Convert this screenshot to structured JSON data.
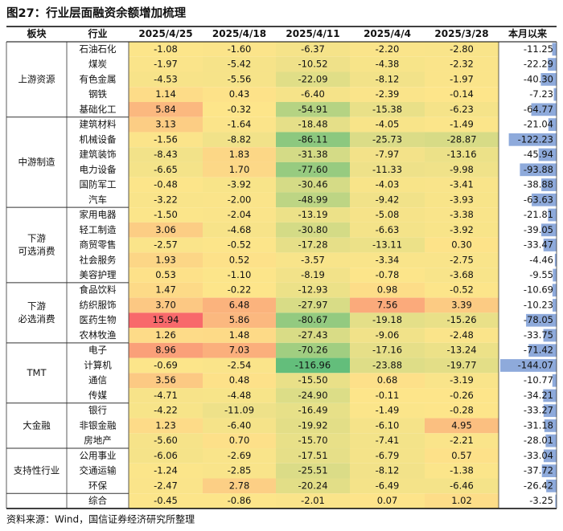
{
  "title": "图27：行业层面融资余额增加梳理",
  "table": {
    "headers": [
      "板块",
      "行业",
      "2025/4/25",
      "2025/4/18",
      "2025/4/11",
      "2025/4/4",
      "2025/3/28",
      "本月以来"
    ],
    "groups": [
      {
        "name": [
          "上游资源"
        ],
        "rows": [
          {
            "industry": "石油石化",
            "values": [
              "-1.08",
              "-1.60",
              "-6.37",
              "-2.20",
              "-2.80"
            ],
            "month": "-11.25"
          },
          {
            "industry": "煤炭",
            "values": [
              "-1.97",
              "-5.42",
              "-10.52",
              "-4.38",
              "-2.32"
            ],
            "month": "-22.29"
          },
          {
            "industry": "有色金属",
            "values": [
              "-4.53",
              "-5.56",
              "-22.09",
              "-8.12",
              "-1.97"
            ],
            "month": "-40.30"
          },
          {
            "industry": "钢铁",
            "values": [
              "1.14",
              "0.43",
              "-6.40",
              "-2.39",
              "-0.14"
            ],
            "month": "-7.23"
          },
          {
            "industry": "基础化工",
            "values": [
              "5.84",
              "-0.32",
              "-54.91",
              "-15.38",
              "-6.23"
            ],
            "month": "-64.77"
          }
        ]
      },
      {
        "name": [
          "中游制造"
        ],
        "rows": [
          {
            "industry": "建筑材料",
            "values": [
              "3.13",
              "-1.64",
              "-18.48",
              "-4.05",
              "-1.49"
            ],
            "month": "-21.04"
          },
          {
            "industry": "机械设备",
            "values": [
              "-1.56",
              "-8.82",
              "-86.11",
              "-25.73",
              "-28.87"
            ],
            "month": "-122.23"
          },
          {
            "industry": "建筑装饰",
            "values": [
              "-8.43",
              "1.83",
              "-31.38",
              "-7.97",
              "-13.16"
            ],
            "month": "-45.94"
          },
          {
            "industry": "电力设备",
            "values": [
              "-6.65",
              "1.70",
              "-77.60",
              "-11.33",
              "-9.98"
            ],
            "month": "-93.88"
          },
          {
            "industry": "国防军工",
            "values": [
              "-0.48",
              "-3.92",
              "-30.46",
              "-4.03",
              "-3.41"
            ],
            "month": "-38.88"
          },
          {
            "industry": "汽车",
            "values": [
              "-3.22",
              "-2.00",
              "-48.99",
              "-9.42",
              "-3.93"
            ],
            "month": "-63.63"
          }
        ]
      },
      {
        "name": [
          "下游",
          "可选消费"
        ],
        "rows": [
          {
            "industry": "家用电器",
            "values": [
              "-1.50",
              "-2.04",
              "-13.19",
              "-5.08",
              "-3.38"
            ],
            "month": "-21.81"
          },
          {
            "industry": "轻工制造",
            "values": [
              "3.06",
              "-4.68",
              "-30.80",
              "-6.63",
              "-3.92"
            ],
            "month": "-39.05"
          },
          {
            "industry": "商贸零售",
            "values": [
              "-2.57",
              "-0.52",
              "-17.28",
              "-13.11",
              "0.30"
            ],
            "month": "-33.47"
          },
          {
            "industry": "社会服务",
            "values": [
              "1.93",
              "0.52",
              "-3.57",
              "-3.34",
              "-2.75"
            ],
            "month": "-4.46"
          },
          {
            "industry": "美容护理",
            "values": [
              "0.53",
              "-1.10",
              "-8.19",
              "-0.78",
              "-3.68"
            ],
            "month": "-9.55"
          }
        ]
      },
      {
        "name": [
          "下游",
          "必选消费"
        ],
        "rows": [
          {
            "industry": "食品饮料",
            "values": [
              "1.47",
              "-0.22",
              "-12.93",
              "0.98",
              "-0.52"
            ],
            "month": "-10.69"
          },
          {
            "industry": "纺织服饰",
            "values": [
              "3.70",
              "6.48",
              "-27.97",
              "7.56",
              "3.39"
            ],
            "month": "-10.23"
          },
          {
            "industry": "医药生物",
            "values": [
              "15.94",
              "5.86",
              "-80.67",
              "-19.18",
              "-15.26"
            ],
            "month": "-78.05"
          },
          {
            "industry": "农林牧渔",
            "values": [
              "1.26",
              "1.48",
              "-27.43",
              "-9.06",
              "-2.48"
            ],
            "month": "-33.75"
          }
        ]
      },
      {
        "name": [
          "TMT"
        ],
        "rows": [
          {
            "industry": "电子",
            "values": [
              "8.96",
              "7.03",
              "-70.26",
              "-17.16",
              "-13.24"
            ],
            "month": "-71.42"
          },
          {
            "industry": "计算机",
            "values": [
              "-0.69",
              "-2.54",
              "-116.96",
              "-23.88",
              "-19.77"
            ],
            "month": "-144.07"
          },
          {
            "industry": "通信",
            "values": [
              "3.56",
              "0.48",
              "-15.50",
              "0.68",
              "-3.19"
            ],
            "month": "-10.77"
          },
          {
            "industry": "传媒",
            "values": [
              "-4.71",
              "-4.48",
              "-24.90",
              "-0.11",
              "-0.26"
            ],
            "month": "-34.21"
          }
        ]
      },
      {
        "name": [
          "大金融"
        ],
        "rows": [
          {
            "industry": "银行",
            "values": [
              "-4.22",
              "-11.09",
              "-16.49",
              "-1.49",
              "-0.28"
            ],
            "month": "-33.27"
          },
          {
            "industry": "非银金融",
            "values": [
              "1.23",
              "-6.40",
              "-19.92",
              "-6.10",
              "4.95"
            ],
            "month": "-31.18"
          },
          {
            "industry": "房地产",
            "values": [
              "-5.60",
              "0.70",
              "-15.70",
              "-7.41",
              "-2.21"
            ],
            "month": "-28.01"
          }
        ]
      },
      {
        "name": [
          "支持性行业"
        ],
        "rows": [
          {
            "industry": "公用事业",
            "values": [
              "-6.06",
              "-2.69",
              "-17.51",
              "-6.79",
              "0.57"
            ],
            "month": "-33.04"
          },
          {
            "industry": "交通运输",
            "values": [
              "-1.24",
              "-2.85",
              "-25.51",
              "-8.12",
              "-1.38"
            ],
            "month": "-37.72"
          },
          {
            "industry": "环保",
            "values": [
              "-2.47",
              "2.78",
              "-20.24",
              "-6.49",
              "-6.46"
            ],
            "month": "-26.42"
          }
        ]
      },
      {
        "rows": [
          {
            "industry": "综合",
            "values": [
              "-0.45",
              "-0.86",
              "-2.01",
              "0.07",
              "1.02"
            ],
            "month": "-3.25"
          }
        ]
      }
    ]
  },
  "source": "资料来源：Wind，国信证券经济研究所整理"
}
